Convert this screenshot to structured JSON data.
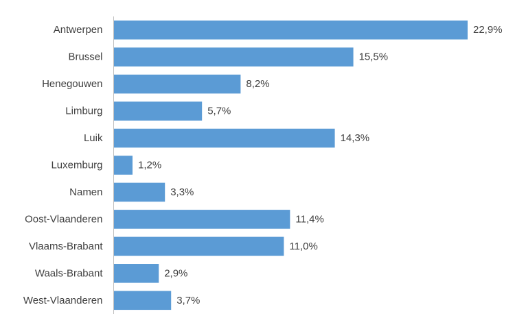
{
  "chart_data": {
    "type": "bar",
    "orientation": "horizontal",
    "categories": [
      "Antwerpen",
      "Brussel",
      "Henegouwen",
      "Limburg",
      "Luik",
      "Luxemburg",
      "Namen",
      "Oost-Vlaanderen",
      "Vlaams-Brabant",
      "Waals-Brabant",
      "West-Vlaanderen"
    ],
    "values": [
      22.9,
      15.5,
      8.2,
      5.7,
      14.3,
      1.2,
      3.3,
      11.4,
      11.0,
      2.9,
      3.7
    ],
    "value_labels": [
      "22,9%",
      "15,5%",
      "8,2%",
      "5,7%",
      "14,3%",
      "1,2%",
      "3,3%",
      "11,4%",
      "11,0%",
      "2,9%",
      "3,7%"
    ],
    "title": "",
    "xlabel": "",
    "ylabel": "",
    "xlim": [
      0,
      24
    ],
    "grid": false,
    "legend": "none",
    "bar_color": "#5B9BD5",
    "axis_color": "#BFBFBF",
    "text_color": "#404040"
  }
}
